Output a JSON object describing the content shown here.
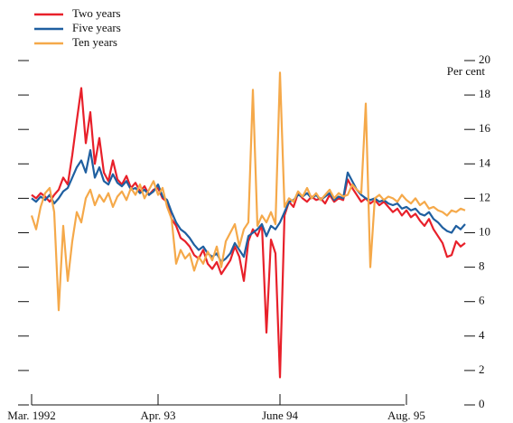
{
  "chart_data": {
    "type": "line",
    "ylabel": "Per cent",
    "categories": [
      "Mar. 1992",
      null,
      null,
      null,
      null,
      null,
      null,
      null,
      null,
      null,
      null,
      null,
      null,
      null,
      null,
      null,
      null,
      null,
      null,
      null,
      null,
      null,
      null,
      null,
      null,
      null,
      null,
      null,
      "Apr. 93",
      null,
      null,
      null,
      null,
      null,
      null,
      null,
      null,
      null,
      null,
      null,
      null,
      null,
      null,
      null,
      null,
      null,
      null,
      null,
      null,
      null,
      null,
      null,
      null,
      null,
      null,
      "June 94",
      null,
      null,
      null,
      null,
      null,
      null,
      null,
      null,
      null,
      null,
      null,
      null,
      null,
      null,
      null,
      null,
      null,
      null,
      null,
      null,
      null,
      null,
      null,
      null,
      null,
      null,
      null,
      "Aug. 95",
      null,
      null,
      null,
      null,
      null,
      null,
      null,
      null,
      null,
      null,
      null,
      null,
      null
    ],
    "series": [
      {
        "name": "Two years",
        "color": "#e8202a",
        "values": [
          12.2,
          12.0,
          12.3,
          12.1,
          11.8,
          12.2,
          12.5,
          13.2,
          12.8,
          14.5,
          16.5,
          18.4,
          15.2,
          17.0,
          14.0,
          15.5,
          13.5,
          13.0,
          14.2,
          13.1,
          12.8,
          13.3,
          12.6,
          12.9,
          12.4,
          12.7,
          12.2,
          12.5,
          12.6,
          12.0,
          11.8,
          10.8,
          10.4,
          9.7,
          9.5,
          9.2,
          8.7,
          8.5,
          9.0,
          8.2,
          7.9,
          8.3,
          7.6,
          8.0,
          8.4,
          9.2,
          8.6,
          7.2,
          9.5,
          10.2,
          9.8,
          10.5,
          4.2,
          9.6,
          8.8,
          1.6,
          11.0,
          11.8,
          11.5,
          12.3,
          12.0,
          11.8,
          12.1,
          11.9,
          12.0,
          11.7,
          12.2,
          11.8,
          12.0,
          11.9,
          13.1,
          12.6,
          12.2,
          11.8,
          12.0,
          11.7,
          11.9,
          11.6,
          11.8,
          11.5,
          11.2,
          11.4,
          11.0,
          11.3,
          10.9,
          11.1,
          10.7,
          10.4,
          10.8,
          10.2,
          9.8,
          9.4,
          8.6,
          8.7,
          9.5,
          9.2,
          9.4
        ]
      },
      {
        "name": "Five years",
        "color": "#1f5fa0",
        "values": [
          12.0,
          11.8,
          12.1,
          11.9,
          12.2,
          11.7,
          12.0,
          12.4,
          12.6,
          13.2,
          13.8,
          14.2,
          13.5,
          14.8,
          13.2,
          13.8,
          13.0,
          12.8,
          13.4,
          12.9,
          12.7,
          13.0,
          12.5,
          12.6,
          12.3,
          12.5,
          12.2,
          12.4,
          12.8,
          12.1,
          11.9,
          11.2,
          10.6,
          10.2,
          10.0,
          9.7,
          9.3,
          9.0,
          9.2,
          8.8,
          8.6,
          8.8,
          8.3,
          8.5,
          8.8,
          9.4,
          9.0,
          8.6,
          9.8,
          10.0,
          10.2,
          10.5,
          9.8,
          10.4,
          10.2,
          10.6,
          11.2,
          11.8,
          11.9,
          12.2,
          12.1,
          12.3,
          12.0,
          12.2,
          11.9,
          12.1,
          12.3,
          11.9,
          12.1,
          12.0,
          13.5,
          13.0,
          12.5,
          12.2,
          12.0,
          11.9,
          12.0,
          11.8,
          11.9,
          11.7,
          11.6,
          11.7,
          11.4,
          11.5,
          11.3,
          11.4,
          11.1,
          11.0,
          11.2,
          10.8,
          10.6,
          10.3,
          10.1,
          10.0,
          10.4,
          10.2,
          10.5
        ]
      },
      {
        "name": "Ten years",
        "color": "#f5a94a",
        "values": [
          11.0,
          10.2,
          11.5,
          12.3,
          12.6,
          11.2,
          5.5,
          10.4,
          7.2,
          9.5,
          11.2,
          10.6,
          12.0,
          12.5,
          11.6,
          12.2,
          11.8,
          12.3,
          11.5,
          12.1,
          12.4,
          11.9,
          12.6,
          12.2,
          12.8,
          12.0,
          12.5,
          13.0,
          12.2,
          12.6,
          11.5,
          10.8,
          8.2,
          9.0,
          8.5,
          8.8,
          7.8,
          8.6,
          8.2,
          8.9,
          8.4,
          9.2,
          8.0,
          9.5,
          10.0,
          10.5,
          9.2,
          10.2,
          10.6,
          18.3,
          10.4,
          11.0,
          10.6,
          11.2,
          10.5,
          19.3,
          11.5,
          12.0,
          11.8,
          12.4,
          12.1,
          12.6,
          12.0,
          12.3,
          11.9,
          12.2,
          12.5,
          12.0,
          12.3,
          12.1,
          12.2,
          12.8,
          12.5,
          12.3,
          17.5,
          8.0,
          12.0,
          12.2,
          11.9,
          12.1,
          12.0,
          11.8,
          12.2,
          11.9,
          11.7,
          12.0,
          11.6,
          11.8,
          11.4,
          11.5,
          11.3,
          11.2,
          11.0,
          11.3,
          11.2,
          11.4,
          11.3
        ]
      }
    ],
    "ylim": [
      0,
      20
    ],
    "yticks": [
      0,
      2,
      4,
      6,
      8,
      10,
      12,
      14,
      16,
      18,
      20
    ]
  }
}
